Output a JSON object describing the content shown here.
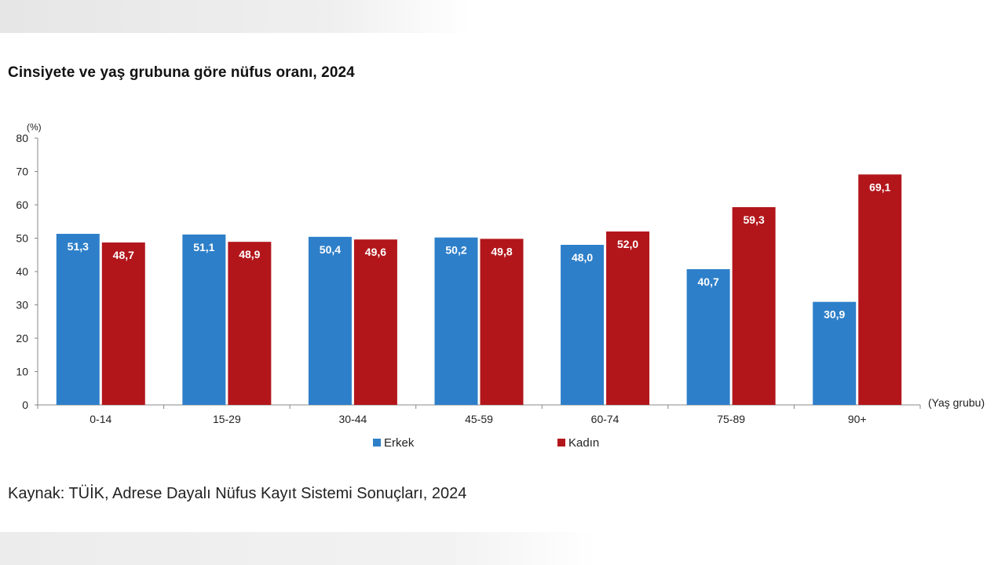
{
  "title": "Cinsiyete ve yaş grubuna göre nüfus oranı, 2024",
  "source": "Kaynak: TÜİK, Adrese Dayalı Nüfus Kayıt Sistemi Sonuçları, 2024",
  "colors": {
    "erkek": "#2e7fc9",
    "kadin": "#b2161b",
    "axis": "#888888",
    "text": "#222222"
  },
  "chart_data": {
    "type": "bar",
    "title": "Cinsiyete ve yaş grubuna göre nüfus oranı, 2024",
    "ylabel": "(%)",
    "xlabel": "(Yaş grubu)",
    "ylim": [
      0,
      80
    ],
    "yticks": [
      0,
      10,
      20,
      30,
      40,
      50,
      60,
      70,
      80
    ],
    "grid": false,
    "legend": "bottom-center",
    "categories": [
      "0-14",
      "15-29",
      "30-44",
      "45-59",
      "60-74",
      "75-89",
      "90+"
    ],
    "series": [
      {
        "name": "Erkek",
        "values": [
          51.3,
          51.1,
          50.4,
          50.2,
          48.0,
          40.7,
          30.9
        ],
        "labels": [
          "51,3",
          "51,1",
          "50,4",
          "50,2",
          "48,0",
          "40,7",
          "30,9"
        ]
      },
      {
        "name": "Kadın",
        "values": [
          48.7,
          48.9,
          49.6,
          49.8,
          52.0,
          59.3,
          69.1
        ],
        "labels": [
          "48,7",
          "48,9",
          "49,6",
          "49,8",
          "52,0",
          "59,3",
          "69,1"
        ]
      }
    ]
  }
}
